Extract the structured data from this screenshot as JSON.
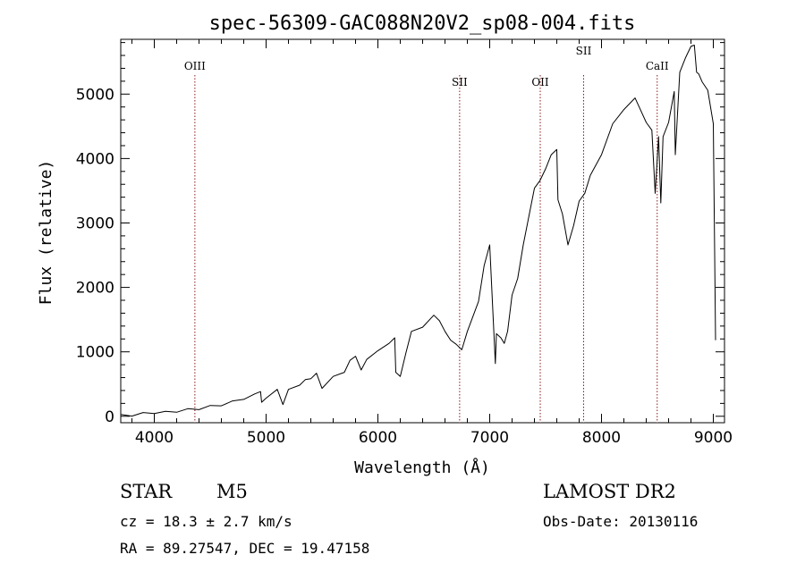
{
  "chart_data": {
    "type": "line",
    "title": "spec-56309-GAC088N20V2_sp08-004.fits",
    "xlabel": "Wavelength (Å)",
    "ylabel": "Flux (relative)",
    "xlim": [
      3700,
      9100
    ],
    "ylim": [
      -100,
      5850
    ],
    "xticks": [
      4000,
      5000,
      6000,
      7000,
      8000,
      9000
    ],
    "yticks": [
      0,
      1000,
      2000,
      3000,
      4000,
      5000
    ],
    "grid": false,
    "line_color": "#000000",
    "marker_color": "#8b1a1a",
    "lines": [
      {
        "label": "OIII",
        "x": 4363
      },
      {
        "label": "SII",
        "x": 6731
      },
      {
        "label": "OII",
        "x": 7452
      },
      {
        "label": "SII",
        "x": 7840
      },
      {
        "label": "CaII",
        "x": 8498
      }
    ],
    "spectrum": {
      "x": [
        3700,
        3800,
        3900,
        4000,
        4100,
        4200,
        4300,
        4400,
        4500,
        4600,
        4700,
        4800,
        4900,
        4950,
        4960,
        5000,
        5100,
        5150,
        5200,
        5300,
        5350,
        5400,
        5450,
        5500,
        5600,
        5700,
        5750,
        5800,
        5850,
        5900,
        6000,
        6100,
        6150,
        6160,
        6200,
        6250,
        6300,
        6400,
        6500,
        6550,
        6600,
        6650,
        6700,
        6750,
        6800,
        6900,
        6950,
        7000,
        7050,
        7060,
        7100,
        7130,
        7160,
        7200,
        7250,
        7300,
        7400,
        7450,
        7500,
        7550,
        7600,
        7610,
        7650,
        7700,
        7730,
        7750,
        7800,
        7850,
        7900,
        8000,
        8100,
        8200,
        8300,
        8400,
        8450,
        8480,
        8510,
        8530,
        8550,
        8600,
        8650,
        8660,
        8700,
        8750,
        8800,
        8830,
        8850,
        8870,
        8900,
        8950,
        9000,
        9020
      ],
      "y": [
        10,
        20,
        40,
        60,
        60,
        80,
        100,
        120,
        150,
        180,
        220,
        280,
        330,
        400,
        200,
        300,
        400,
        200,
        400,
        500,
        550,
        600,
        650,
        450,
        600,
        700,
        850,
        950,
        700,
        900,
        1000,
        1150,
        1200,
        700,
        600,
        1000,
        1300,
        1400,
        1550,
        1500,
        1300,
        1200,
        1100,
        1050,
        1300,
        1800,
        2300,
        2700,
        800,
        1300,
        1200,
        1150,
        1300,
        1900,
        2100,
        2700,
        3500,
        3700,
        3800,
        4100,
        4100,
        3400,
        3100,
        2700,
        2800,
        3000,
        3300,
        3500,
        3700,
        4100,
        4500,
        4800,
        4900,
        4600,
        4400,
        3500,
        4300,
        3350,
        4300,
        4600,
        5000,
        4100,
        5300,
        5600,
        5700,
        5800,
        5300,
        5350,
        5150,
        5100,
        4500,
        1200
      ]
    },
    "info": {
      "object_class": "STAR",
      "subclass": "M5",
      "survey": "LAMOST DR2",
      "cz": "cz = 18.3 ± 2.7 km/s",
      "obs_date": "Obs-Date: 20130116",
      "coords": "RA =  89.27547, DEC =  19.47158"
    }
  }
}
